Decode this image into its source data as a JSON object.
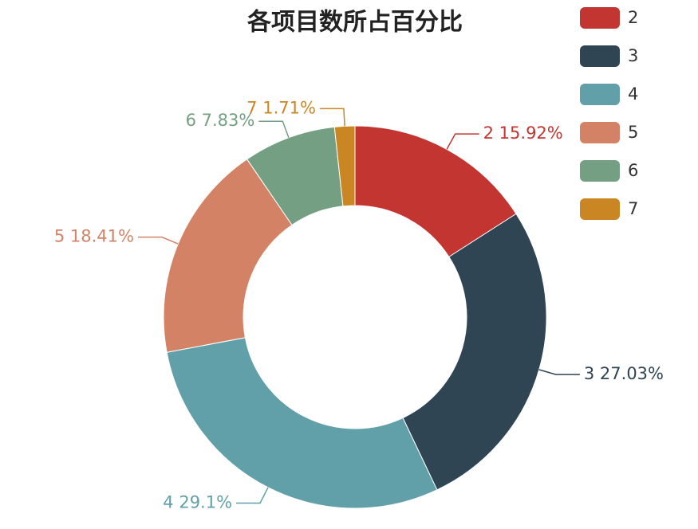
{
  "chart_data": {
    "type": "pie",
    "title": "各项目数所占百分比",
    "categories": [
      "2",
      "3",
      "4",
      "5",
      "6",
      "7"
    ],
    "values": [
      15.92,
      27.03,
      29.1,
      18.41,
      7.83,
      1.71
    ],
    "value_labels": [
      "2 15.92%",
      "3 27.03%",
      "4 29.1%",
      "5 18.41%",
      "6 7.83%",
      "7 1.71%"
    ],
    "colors": [
      "#c23531",
      "#2f4554",
      "#61a0a8",
      "#d48265",
      "#749f83",
      "#ca8622"
    ],
    "legend": "top-right"
  }
}
